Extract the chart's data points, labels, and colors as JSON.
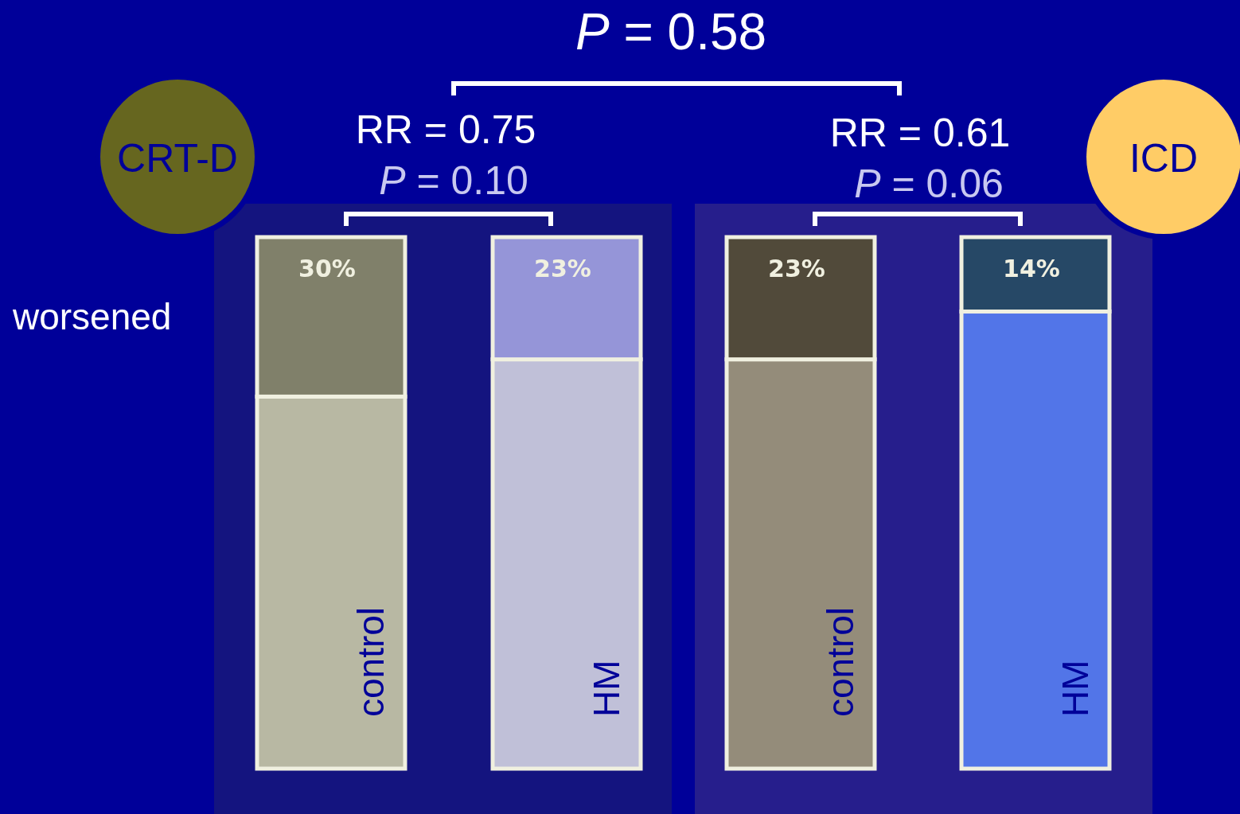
{
  "chart_data": {
    "type": "bar",
    "stacked": true,
    "categories": [
      "control",
      "HM",
      "control",
      "HM"
    ],
    "series": [
      {
        "colors": [
          "#b8b8a3",
          "#c0c0d8",
          "#948c7a",
          "#5275e8"
        ],
        "values": [
          70,
          77,
          77,
          86
        ]
      },
      {
        "name": "worsened",
        "colors": [
          "#80806a",
          "#9595d8",
          "#514a3a",
          "#264866"
        ],
        "values": [
          30,
          23,
          23,
          14
        ],
        "value_labels": [
          "30%",
          "23%",
          "23%",
          "14%"
        ]
      }
    ],
    "annotations": [
      "P = 0.58",
      "RR = 0.75",
      "P = 0.10",
      "RR = 0.61",
      "P = 0.06",
      "CRT-D",
      "ICD"
    ],
    "legend": false
  }
}
